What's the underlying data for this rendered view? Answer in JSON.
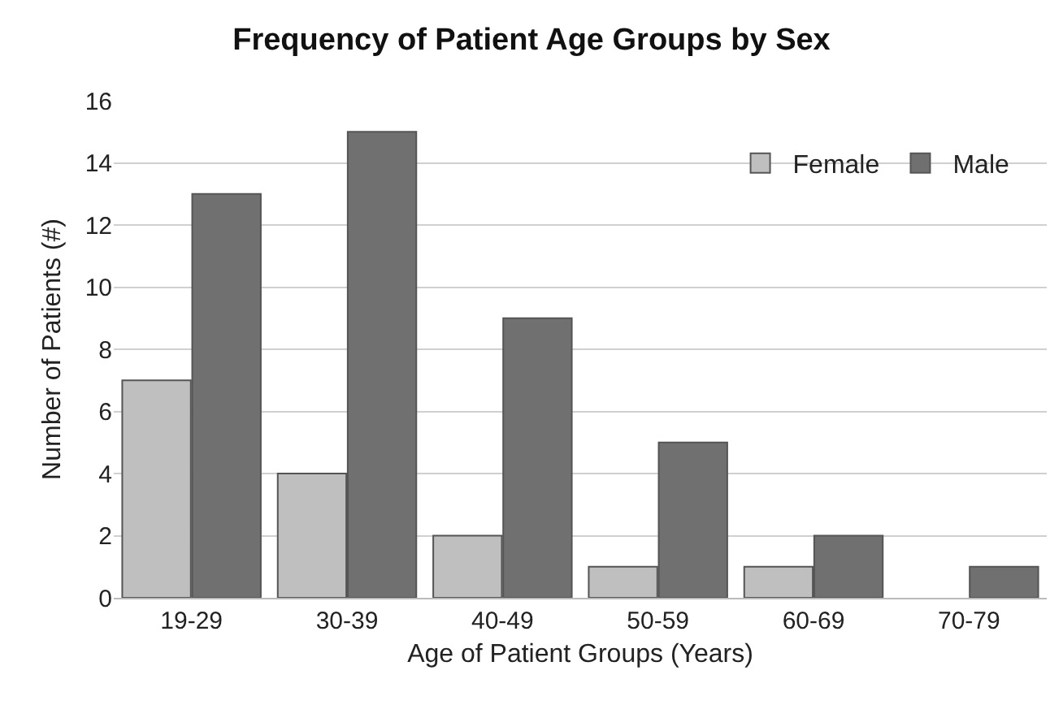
{
  "chart_data": {
    "type": "bar",
    "title": "Frequency of Patient Age Groups by Sex",
    "xlabel": "Age of Patient Groups (Years)",
    "ylabel": "Number of Patients (#)",
    "categories": [
      "19-29",
      "30-39",
      "40-49",
      "50-59",
      "60-69",
      "70-79"
    ],
    "series": [
      {
        "name": "Female",
        "color": "#bfbfbf",
        "values": [
          7,
          4,
          2,
          1,
          1,
          0
        ]
      },
      {
        "name": "Male",
        "color": "#707070",
        "values": [
          13,
          15,
          9,
          5,
          2,
          1
        ]
      }
    ],
    "ylim": [
      0,
      16
    ],
    "yticks": [
      0,
      2,
      4,
      6,
      8,
      10,
      12,
      14,
      16
    ],
    "grid": "y",
    "legend": "top right"
  }
}
